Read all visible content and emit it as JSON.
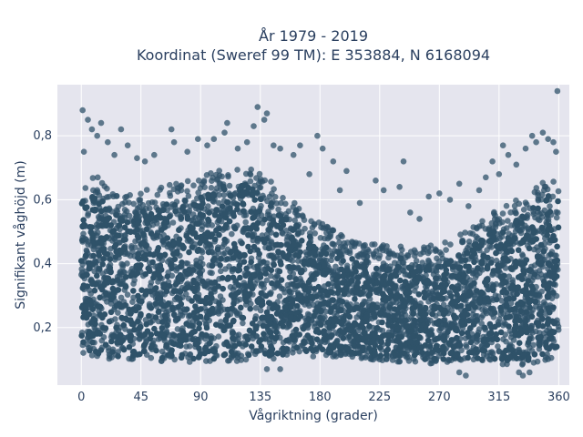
{
  "chart_data": {
    "type": "scatter",
    "title_line1": "År 1979 - 2019",
    "title_line2": "Koordinat (Sweref 99 TM): E 353884, N 6168094",
    "xlabel": "Vågriktning (grader)",
    "ylabel": "Signifikant våghöjd (m)",
    "xlim": [
      -18,
      368
    ],
    "ylim": [
      0.02,
      0.96
    ],
    "x_ticks": [
      0,
      45,
      90,
      135,
      180,
      225,
      270,
      315,
      360
    ],
    "x_tick_labels": [
      "0",
      "45",
      "90",
      "135",
      "180",
      "225",
      "270",
      "315",
      "360"
    ],
    "y_ticks": [
      0.2,
      0.4,
      0.6,
      0.8
    ],
    "y_tick_labels": [
      "0,2",
      "0,4",
      "0,6",
      "0,8"
    ],
    "grid": true,
    "marker_color": "#2f5269",
    "marker_opacity": 0.75,
    "plot_bg": "#e5e5ee",
    "envelope": {
      "x": [
        0,
        10,
        20,
        30,
        45,
        60,
        75,
        90,
        105,
        120,
        135,
        150,
        165,
        180,
        200,
        225,
        250,
        270,
        290,
        305,
        320,
        335,
        345,
        355,
        360
      ],
      "lower": [
        0.1,
        0.1,
        0.09,
        0.09,
        0.09,
        0.08,
        0.08,
        0.08,
        0.08,
        0.08,
        0.09,
        0.09,
        0.1,
        0.1,
        0.1,
        0.09,
        0.08,
        0.08,
        0.08,
        0.08,
        0.07,
        0.07,
        0.08,
        0.09,
        0.1
      ],
      "upper": [
        0.66,
        0.68,
        0.64,
        0.62,
        0.63,
        0.64,
        0.66,
        0.67,
        0.7,
        0.71,
        0.7,
        0.62,
        0.58,
        0.53,
        0.48,
        0.46,
        0.45,
        0.46,
        0.5,
        0.55,
        0.58,
        0.62,
        0.65,
        0.68,
        0.66
      ]
    },
    "outliers": [
      {
        "x": 1,
        "y": 0.88
      },
      {
        "x": 5,
        "y": 0.85
      },
      {
        "x": 8,
        "y": 0.82
      },
      {
        "x": 12,
        "y": 0.8
      },
      {
        "x": 15,
        "y": 0.84
      },
      {
        "x": 20,
        "y": 0.78
      },
      {
        "x": 2,
        "y": 0.75
      },
      {
        "x": 25,
        "y": 0.74
      },
      {
        "x": 30,
        "y": 0.82
      },
      {
        "x": 35,
        "y": 0.77
      },
      {
        "x": 42,
        "y": 0.73
      },
      {
        "x": 48,
        "y": 0.72
      },
      {
        "x": 55,
        "y": 0.74
      },
      {
        "x": 68,
        "y": 0.82
      },
      {
        "x": 70,
        "y": 0.78
      },
      {
        "x": 80,
        "y": 0.75
      },
      {
        "x": 88,
        "y": 0.79
      },
      {
        "x": 95,
        "y": 0.77
      },
      {
        "x": 100,
        "y": 0.79
      },
      {
        "x": 108,
        "y": 0.81
      },
      {
        "x": 110,
        "y": 0.84
      },
      {
        "x": 118,
        "y": 0.76
      },
      {
        "x": 125,
        "y": 0.78
      },
      {
        "x": 130,
        "y": 0.83
      },
      {
        "x": 133,
        "y": 0.89
      },
      {
        "x": 138,
        "y": 0.85
      },
      {
        "x": 140,
        "y": 0.87
      },
      {
        "x": 145,
        "y": 0.77
      },
      {
        "x": 150,
        "y": 0.76
      },
      {
        "x": 160,
        "y": 0.74
      },
      {
        "x": 165,
        "y": 0.77
      },
      {
        "x": 172,
        "y": 0.68
      },
      {
        "x": 178,
        "y": 0.8
      },
      {
        "x": 182,
        "y": 0.76
      },
      {
        "x": 190,
        "y": 0.72
      },
      {
        "x": 195,
        "y": 0.63
      },
      {
        "x": 200,
        "y": 0.69
      },
      {
        "x": 210,
        "y": 0.59
      },
      {
        "x": 222,
        "y": 0.66
      },
      {
        "x": 228,
        "y": 0.63
      },
      {
        "x": 240,
        "y": 0.64
      },
      {
        "x": 243,
        "y": 0.72
      },
      {
        "x": 248,
        "y": 0.56
      },
      {
        "x": 255,
        "y": 0.54
      },
      {
        "x": 262,
        "y": 0.61
      },
      {
        "x": 270,
        "y": 0.62
      },
      {
        "x": 278,
        "y": 0.6
      },
      {
        "x": 285,
        "y": 0.65
      },
      {
        "x": 292,
        "y": 0.58
      },
      {
        "x": 300,
        "y": 0.63
      },
      {
        "x": 305,
        "y": 0.67
      },
      {
        "x": 310,
        "y": 0.72
      },
      {
        "x": 315,
        "y": 0.68
      },
      {
        "x": 318,
        "y": 0.77
      },
      {
        "x": 322,
        "y": 0.74
      },
      {
        "x": 328,
        "y": 0.71
      },
      {
        "x": 335,
        "y": 0.76
      },
      {
        "x": 340,
        "y": 0.8
      },
      {
        "x": 343,
        "y": 0.78
      },
      {
        "x": 348,
        "y": 0.81
      },
      {
        "x": 352,
        "y": 0.79
      },
      {
        "x": 356,
        "y": 0.78
      },
      {
        "x": 358,
        "y": 0.75
      },
      {
        "x": 359,
        "y": 0.94
      },
      {
        "x": 330,
        "y": 0.06
      },
      {
        "x": 333,
        "y": 0.05
      },
      {
        "x": 338,
        "y": 0.06
      },
      {
        "x": 285,
        "y": 0.06
      },
      {
        "x": 290,
        "y": 0.05
      },
      {
        "x": 140,
        "y": 0.07
      },
      {
        "x": 150,
        "y": 0.07
      }
    ]
  }
}
